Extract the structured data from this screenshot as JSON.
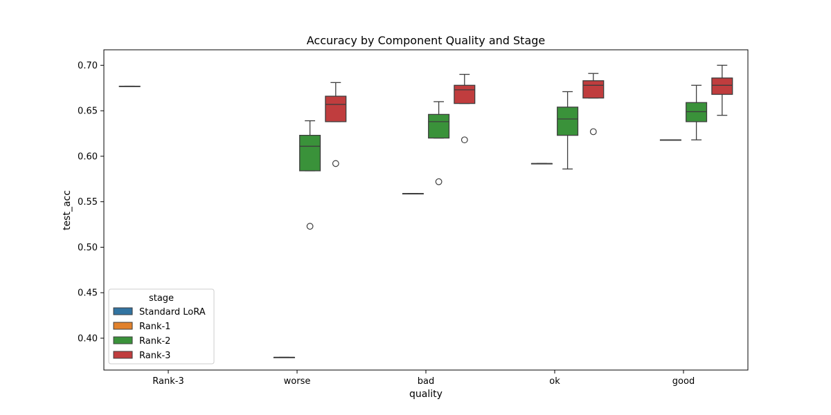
{
  "chart_data": {
    "type": "box",
    "title": "Accuracy by Component Quality and Stage",
    "xlabel": "quality",
    "ylabel": "test_acc",
    "categories": [
      "Rank-3",
      "worse",
      "bad",
      "ok",
      "good"
    ],
    "ylim": [
      0.365,
      0.717
    ],
    "yticks": [
      0.4,
      0.45,
      0.5,
      0.55,
      0.6,
      0.65,
      0.7
    ],
    "ytick_labels": [
      "0.40",
      "0.45",
      "0.50",
      "0.55",
      "0.60",
      "0.65",
      "0.70"
    ],
    "grid": false,
    "legend": {
      "title": "stage",
      "placement": "lower-left",
      "entries": [
        {
          "name": "Standard LoRA",
          "color": "#3274a1"
        },
        {
          "name": "Rank-1",
          "color": "#e1812c"
        },
        {
          "name": "Rank-2",
          "color": "#3a923a"
        },
        {
          "name": "Rank-3",
          "color": "#c03d3e"
        }
      ]
    },
    "series": [
      {
        "name": "Standard LoRA",
        "boxes": [
          {
            "category": "Rank-3",
            "min": 0.677,
            "q1": 0.677,
            "median": 0.677,
            "q3": 0.677,
            "max": 0.677,
            "outliers": []
          },
          null,
          null,
          null,
          null
        ]
      },
      {
        "name": "Rank-1",
        "boxes": [
          null,
          {
            "category": "worse",
            "min": 0.379,
            "q1": 0.379,
            "median": 0.379,
            "q3": 0.379,
            "max": 0.379,
            "outliers": []
          },
          {
            "category": "bad",
            "min": 0.559,
            "q1": 0.559,
            "median": 0.559,
            "q3": 0.559,
            "max": 0.559,
            "outliers": []
          },
          {
            "category": "ok",
            "min": 0.592,
            "q1": 0.592,
            "median": 0.592,
            "q3": 0.592,
            "max": 0.592,
            "outliers": []
          },
          {
            "category": "good",
            "min": 0.618,
            "q1": 0.618,
            "median": 0.618,
            "q3": 0.618,
            "max": 0.618,
            "outliers": []
          }
        ]
      },
      {
        "name": "Rank-2",
        "boxes": [
          null,
          {
            "category": "worse",
            "min": 0.584,
            "q1": 0.584,
            "median": 0.611,
            "q3": 0.623,
            "max": 0.639,
            "outliers": [
              0.523
            ]
          },
          {
            "category": "bad",
            "min": 0.62,
            "q1": 0.62,
            "median": 0.638,
            "q3": 0.646,
            "max": 0.66,
            "outliers": [
              0.572
            ]
          },
          {
            "category": "ok",
            "min": 0.586,
            "q1": 0.623,
            "median": 0.641,
            "q3": 0.654,
            "max": 0.671,
            "outliers": []
          },
          {
            "category": "good",
            "min": 0.618,
            "q1": 0.638,
            "median": 0.649,
            "q3": 0.659,
            "max": 0.678,
            "outliers": []
          }
        ]
      },
      {
        "name": "Rank-3",
        "boxes": [
          null,
          {
            "category": "worse",
            "min": 0.638,
            "q1": 0.638,
            "median": 0.657,
            "q3": 0.666,
            "max": 0.681,
            "outliers": [
              0.592
            ]
          },
          {
            "category": "bad",
            "min": 0.658,
            "q1": 0.658,
            "median": 0.673,
            "q3": 0.678,
            "max": 0.69,
            "outliers": [
              0.618
            ]
          },
          {
            "category": "ok",
            "min": 0.664,
            "q1": 0.664,
            "median": 0.678,
            "q3": 0.683,
            "max": 0.691,
            "outliers": [
              0.627
            ]
          },
          {
            "category": "good",
            "min": 0.645,
            "q1": 0.668,
            "median": 0.678,
            "q3": 0.686,
            "max": 0.7,
            "outliers": []
          }
        ]
      }
    ]
  }
}
